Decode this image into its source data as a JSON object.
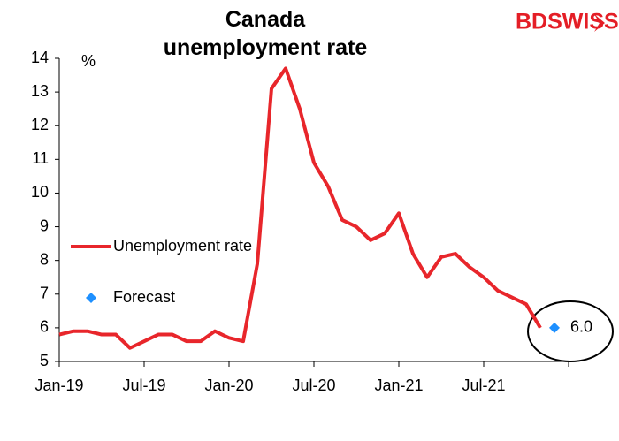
{
  "chart_data": {
    "type": "line",
    "title": "Canada unemployment rate",
    "y_unit": "%",
    "logo": "BDSWISS",
    "categories": [
      "Jan-19",
      null,
      null,
      null,
      null,
      null,
      "Jul-19",
      null,
      null,
      null,
      null,
      null,
      "Jan-20",
      null,
      null,
      null,
      null,
      null,
      "Jul-20",
      null,
      null,
      null,
      null,
      null,
      "Jan-21",
      null,
      null,
      null,
      null,
      null,
      "Jul-21",
      null,
      null,
      null,
      null,
      null
    ],
    "series": [
      {
        "name": "Unemployment rate",
        "color": "#e8262b",
        "values": [
          5.8,
          5.9,
          5.9,
          5.8,
          5.8,
          5.4,
          5.6,
          5.8,
          5.8,
          5.6,
          5.6,
          5.9,
          5.7,
          5.6,
          7.9,
          13.1,
          13.7,
          12.5,
          10.9,
          10.2,
          9.2,
          9.0,
          8.6,
          8.8,
          9.4,
          8.2,
          7.5,
          8.1,
          8.2,
          7.8,
          7.5,
          7.1,
          6.9,
          6.7,
          6.0,
          null
        ]
      },
      {
        "name": "Forecast",
        "color": "#1e90ff",
        "values": [
          null,
          null,
          null,
          null,
          null,
          null,
          null,
          null,
          null,
          null,
          null,
          null,
          null,
          null,
          null,
          null,
          null,
          null,
          null,
          null,
          null,
          null,
          null,
          null,
          null,
          null,
          null,
          null,
          null,
          null,
          null,
          null,
          null,
          null,
          null,
          6.0
        ],
        "value_labels": [
          null,
          null,
          null,
          null,
          null,
          null,
          null,
          null,
          null,
          null,
          null,
          null,
          null,
          null,
          null,
          null,
          null,
          null,
          null,
          null,
          null,
          null,
          null,
          null,
          null,
          null,
          null,
          null,
          null,
          null,
          null,
          null,
          null,
          null,
          null,
          "6.0"
        ]
      }
    ],
    "ylim": [
      5,
      14
    ],
    "yticks": [
      5,
      6,
      7,
      8,
      9,
      10,
      11,
      12,
      13,
      14
    ]
  }
}
